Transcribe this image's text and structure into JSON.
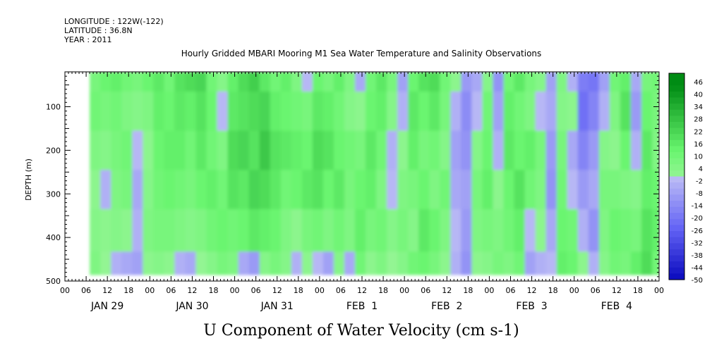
{
  "header": {
    "longitude": "LONGITUDE : 122W(-122)",
    "latitude": "LATITUDE : 36.8N",
    "year": "YEAR : 2011"
  },
  "chart_data": {
    "type": "heatmap",
    "title": "Hourly Gridded MBARI Mooring M1 Sea Water Temperature and Salinity Observations",
    "xlabel": "U Component of Water Velocity (cm s-1)",
    "ylabel": "DEPTH (m)",
    "y_reversed": true,
    "ylim": [
      500,
      20
    ],
    "y_ticks": [
      "100",
      "200",
      "300",
      "400",
      "500"
    ],
    "x_hour_ticks": [
      "00",
      "06",
      "12",
      "18",
      "00",
      "06",
      "12",
      "18",
      "00",
      "06",
      "12",
      "18",
      "00",
      "06",
      "12",
      "18",
      "00",
      "06",
      "12",
      "18",
      "00",
      "06",
      "12",
      "18",
      "00",
      "06",
      "12",
      "18",
      "00"
    ],
    "x_day_labels": [
      "JAN 29",
      "JAN 30",
      "JAN 31",
      "FEB  1",
      "FEB  2",
      "FEB  3",
      "FEB  4"
    ],
    "data_extent": {
      "start_hour": 7,
      "end_hour": 168,
      "depth_top": 20,
      "depth_bottom": 485
    },
    "colorbar": {
      "levels": [
        "46",
        "40",
        "34",
        "28",
        "22",
        "16",
        "10",
        "4",
        "-2",
        "-8",
        "-14",
        "-20",
        "-26",
        "-32",
        "-38",
        "-44",
        "-50"
      ],
      "min": -50,
      "max": 50
    },
    "columns": [
      {
        "h": 7,
        "v": [
          8,
          10,
          6,
          2,
          4,
          6
        ]
      },
      {
        "h": 10,
        "v": [
          12,
          8,
          4,
          -4,
          2,
          0
        ]
      },
      {
        "h": 13,
        "v": [
          14,
          10,
          8,
          6,
          4,
          -4
        ]
      },
      {
        "h": 16,
        "v": [
          10,
          6,
          10,
          8,
          2,
          -6
        ]
      },
      {
        "h": 19,
        "v": [
          8,
          4,
          -2,
          -6,
          -4,
          -8
        ]
      },
      {
        "h": 22,
        "v": [
          12,
          6,
          2,
          4,
          6,
          2
        ]
      },
      {
        "h": 25,
        "v": [
          16,
          14,
          12,
          10,
          8,
          4
        ]
      },
      {
        "h": 28,
        "v": [
          10,
          12,
          14,
          12,
          8,
          2
        ]
      },
      {
        "h": 31,
        "v": [
          18,
          16,
          14,
          10,
          6,
          -4
        ]
      },
      {
        "h": 34,
        "v": [
          20,
          14,
          10,
          8,
          4,
          -6
        ]
      },
      {
        "h": 37,
        "v": [
          22,
          18,
          16,
          12,
          6,
          0
        ]
      },
      {
        "h": 40,
        "v": [
          10,
          12,
          10,
          14,
          10,
          4
        ]
      },
      {
        "h": 43,
        "v": [
          4,
          -2,
          6,
          10,
          12,
          8
        ]
      },
      {
        "h": 46,
        "v": [
          14,
          16,
          20,
          18,
          10,
          6
        ]
      },
      {
        "h": 49,
        "v": [
          20,
          18,
          22,
          16,
          12,
          -6
        ]
      },
      {
        "h": 52,
        "v": [
          24,
          20,
          18,
          22,
          16,
          -10
        ]
      },
      {
        "h": 55,
        "v": [
          16,
          22,
          26,
          20,
          14,
          4
        ]
      },
      {
        "h": 58,
        "v": [
          10,
          14,
          18,
          16,
          12,
          8
        ]
      },
      {
        "h": 61,
        "v": [
          14,
          12,
          16,
          10,
          6,
          4
        ]
      },
      {
        "h": 64,
        "v": [
          6,
          10,
          14,
          12,
          2,
          -4
        ]
      },
      {
        "h": 67,
        "v": [
          -2,
          8,
          12,
          16,
          8,
          2
        ]
      },
      {
        "h": 70,
        "v": [
          12,
          16,
          20,
          18,
          10,
          -2
        ]
      },
      {
        "h": 73,
        "v": [
          8,
          14,
          18,
          12,
          6,
          -8
        ]
      },
      {
        "h": 76,
        "v": [
          14,
          10,
          12,
          16,
          10,
          4
        ]
      },
      {
        "h": 79,
        "v": [
          6,
          4,
          10,
          8,
          6,
          -6
        ]
      },
      {
        "h": 82,
        "v": [
          -6,
          2,
          8,
          12,
          14,
          10
        ]
      },
      {
        "h": 85,
        "v": [
          10,
          12,
          16,
          14,
          8,
          2
        ]
      },
      {
        "h": 88,
        "v": [
          16,
          14,
          10,
          6,
          10,
          6
        ]
      },
      {
        "h": 91,
        "v": [
          8,
          4,
          -4,
          -2,
          4,
          0
        ]
      },
      {
        "h": 94,
        "v": [
          -8,
          -4,
          2,
          6,
          8,
          4
        ]
      },
      {
        "h": 97,
        "v": [
          12,
          16,
          14,
          8,
          4,
          10
        ]
      },
      {
        "h": 100,
        "v": [
          18,
          12,
          8,
          12,
          16,
          12
        ]
      },
      {
        "h": 103,
        "v": [
          20,
          16,
          10,
          6,
          12,
          8
        ]
      },
      {
        "h": 106,
        "v": [
          10,
          8,
          4,
          10,
          6,
          2
        ]
      },
      {
        "h": 109,
        "v": [
          2,
          -4,
          -8,
          -6,
          -2,
          -4
        ]
      },
      {
        "h": 112,
        "v": [
          -10,
          -14,
          -12,
          -8,
          -10,
          -12
        ]
      },
      {
        "h": 115,
        "v": [
          -6,
          -2,
          4,
          8,
          6,
          2
        ]
      },
      {
        "h": 118,
        "v": [
          4,
          10,
          12,
          14,
          8,
          4
        ]
      },
      {
        "h": 121,
        "v": [
          -12,
          -8,
          -4,
          2,
          6,
          8
        ]
      },
      {
        "h": 124,
        "v": [
          10,
          14,
          16,
          12,
          10,
          6
        ]
      },
      {
        "h": 127,
        "v": [
          16,
          10,
          12,
          18,
          14,
          10
        ]
      },
      {
        "h": 130,
        "v": [
          8,
          6,
          14,
          10,
          -2,
          -8
        ]
      },
      {
        "h": 133,
        "v": [
          4,
          -2,
          8,
          6,
          2,
          -4
        ]
      },
      {
        "h": 136,
        "v": [
          -8,
          -6,
          -10,
          -12,
          -6,
          -2
        ]
      },
      {
        "h": 139,
        "v": [
          6,
          4,
          8,
          10,
          12,
          14
        ]
      },
      {
        "h": 142,
        "v": [
          -4,
          2,
          -6,
          -2,
          10,
          12
        ]
      },
      {
        "h": 145,
        "v": [
          -18,
          -22,
          -16,
          -10,
          -4,
          2
        ]
      },
      {
        "h": 148,
        "v": [
          -20,
          -16,
          -10,
          -6,
          -12,
          -4
        ]
      },
      {
        "h": 151,
        "v": [
          -8,
          -4,
          4,
          8,
          6,
          4
        ]
      },
      {
        "h": 154,
        "v": [
          10,
          6,
          2,
          8,
          12,
          10
        ]
      },
      {
        "h": 157,
        "v": [
          14,
          18,
          12,
          6,
          10,
          8
        ]
      },
      {
        "h": 160,
        "v": [
          -6,
          -10,
          -4,
          4,
          8,
          14
        ]
      },
      {
        "h": 163,
        "v": [
          8,
          12,
          16,
          14,
          18,
          20
        ]
      },
      {
        "h": 166,
        "v": [
          10,
          8,
          6,
          12,
          14,
          10
        ]
      }
    ],
    "column_depths": [
      20,
      110,
      200,
      290,
      380,
      485
    ]
  }
}
